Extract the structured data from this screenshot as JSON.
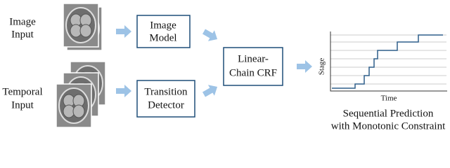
{
  "nodes": [
    {
      "label": [
        "Image",
        "Input"
      ]
    },
    {
      "label": [
        "Temporal",
        "Input"
      ]
    },
    {
      "label": [
        "Image",
        "Model"
      ]
    },
    {
      "label": [
        "Transition",
        "Detector"
      ]
    },
    {
      "label": [
        "Linear-",
        "Chain CRF"
      ]
    }
  ],
  "plot": {
    "ylabel": "Stage",
    "xlabel": "Time"
  },
  "caption": [
    "Sequential Prediction",
    "with Monotonic Constraint"
  ]
}
